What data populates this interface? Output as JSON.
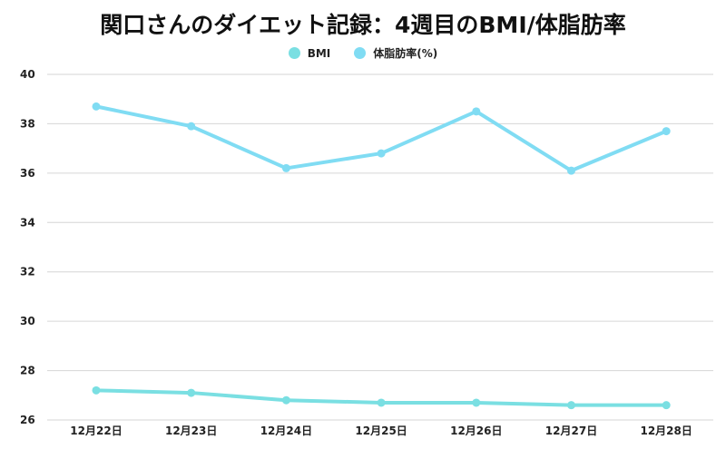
{
  "chart_data": {
    "type": "line",
    "title": "関口さんのダイエット記録：4週目のBMI/体脂肪率",
    "categories": [
      "12月22日",
      "12月23日",
      "12月24日",
      "12月25日",
      "12月26日",
      "12月27日",
      "12月28日"
    ],
    "series": [
      {
        "name": "BMI",
        "color": "#7adfe2",
        "values": [
          27.2,
          27.1,
          26.8,
          26.7,
          26.7,
          26.6,
          26.6
        ]
      },
      {
        "name": "体脂肪率(%)",
        "color": "#80dcf3",
        "values": [
          38.7,
          37.9,
          36.2,
          36.8,
          38.5,
          36.1,
          37.7
        ]
      }
    ],
    "ylim": [
      26,
      40
    ],
    "yticks": [
      26,
      28,
      30,
      32,
      34,
      36,
      38,
      40
    ],
    "grid": true,
    "legend": "top"
  }
}
